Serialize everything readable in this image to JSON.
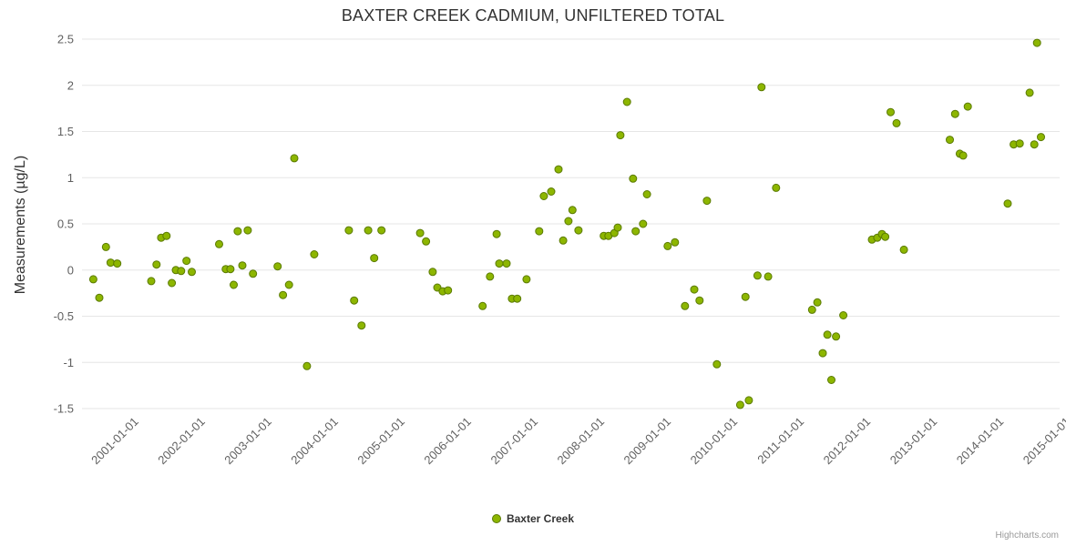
{
  "chart": {
    "title": "BAXTER CREEK CADMIUM, UNFILTERED TOTAL"
  },
  "legend": {
    "label": "Baxter Creek"
  },
  "credits": {
    "label": "Highcharts.com"
  },
  "chart_data": {
    "type": "scatter",
    "title": "BAXTER CREEK CADMIUM, UNFILTERED TOTAL",
    "xlabel": "",
    "ylabel": "Measurements (µg/L)",
    "ylim": [
      -1.5,
      2.5
    ],
    "xlim": [
      2000.21,
      2014.9
    ],
    "grid": true,
    "legend_position": "bottom-center",
    "y_ticks": [
      2.5,
      2,
      1.5,
      1,
      0.5,
      0,
      -0.5,
      -1,
      -1.5
    ],
    "y_tick_labels": [
      "2.5",
      "2",
      "1.5",
      "1",
      "0.5",
      "0",
      "-0.5",
      "-1",
      "-1.5"
    ],
    "x_ticks": [
      2001,
      2002,
      2003,
      2004,
      2005,
      2006,
      2007,
      2008,
      2009,
      2010,
      2011,
      2012,
      2013,
      2014,
      2015
    ],
    "x_tick_labels": [
      "2001-01-01",
      "2002-01-01",
      "2003-01-01",
      "2004-01-01",
      "2005-01-01",
      "2006-01-01",
      "2007-01-01",
      "2008-01-01",
      "2009-01-01",
      "2010-01-01",
      "2011-01-01",
      "2012-01-01",
      "2013-01-01",
      "2014-01-01",
      "2015-01-01"
    ],
    "series": [
      {
        "name": "Baxter Creek",
        "color": "#8db600",
        "marker_stroke": "#5a7a00",
        "points": [
          [
            2000.38,
            -0.1
          ],
          [
            2000.47,
            -0.3
          ],
          [
            2000.57,
            0.25
          ],
          [
            2000.64,
            0.08
          ],
          [
            2000.74,
            0.07
          ],
          [
            2001.25,
            -0.12
          ],
          [
            2001.33,
            0.06
          ],
          [
            2001.4,
            0.35
          ],
          [
            2001.48,
            0.37
          ],
          [
            2001.56,
            -0.14
          ],
          [
            2001.62,
            0.0
          ],
          [
            2001.7,
            -0.01
          ],
          [
            2001.78,
            0.1
          ],
          [
            2001.86,
            -0.02
          ],
          [
            2002.27,
            0.28
          ],
          [
            2002.37,
            0.01
          ],
          [
            2002.44,
            0.01
          ],
          [
            2002.49,
            -0.16
          ],
          [
            2002.55,
            0.42
          ],
          [
            2002.62,
            0.05
          ],
          [
            2002.7,
            0.43
          ],
          [
            2002.78,
            -0.04
          ],
          [
            2003.15,
            0.04
          ],
          [
            2003.23,
            -0.27
          ],
          [
            2003.32,
            -0.16
          ],
          [
            2003.4,
            1.21
          ],
          [
            2003.59,
            -1.04
          ],
          [
            2003.7,
            0.17
          ],
          [
            2004.22,
            0.43
          ],
          [
            2004.3,
            -0.33
          ],
          [
            2004.41,
            -0.6
          ],
          [
            2004.51,
            0.43
          ],
          [
            2004.6,
            0.13
          ],
          [
            2004.71,
            0.43
          ],
          [
            2005.29,
            0.4
          ],
          [
            2005.38,
            0.31
          ],
          [
            2005.48,
            -0.02
          ],
          [
            2005.55,
            -0.19
          ],
          [
            2005.63,
            -0.23
          ],
          [
            2005.71,
            -0.22
          ],
          [
            2006.23,
            -0.39
          ],
          [
            2006.34,
            -0.07
          ],
          [
            2006.44,
            0.39
          ],
          [
            2006.48,
            0.07
          ],
          [
            2006.59,
            0.07
          ],
          [
            2006.67,
            -0.31
          ],
          [
            2006.75,
            -0.31
          ],
          [
            2006.89,
            -0.1
          ],
          [
            2007.08,
            0.42
          ],
          [
            2007.15,
            0.8
          ],
          [
            2007.26,
            0.85
          ],
          [
            2007.37,
            1.09
          ],
          [
            2007.44,
            0.32
          ],
          [
            2007.52,
            0.53
          ],
          [
            2007.58,
            0.65
          ],
          [
            2007.67,
            0.43
          ],
          [
            2008.05,
            0.37
          ],
          [
            2008.12,
            0.37
          ],
          [
            2008.21,
            0.4
          ],
          [
            2008.26,
            0.46
          ],
          [
            2008.3,
            1.46
          ],
          [
            2008.4,
            1.82
          ],
          [
            2008.49,
            0.99
          ],
          [
            2008.53,
            0.42
          ],
          [
            2008.64,
            0.5
          ],
          [
            2008.7,
            0.82
          ],
          [
            2009.01,
            0.26
          ],
          [
            2009.12,
            0.3
          ],
          [
            2009.27,
            -0.39
          ],
          [
            2009.41,
            -0.21
          ],
          [
            2009.49,
            -0.33
          ],
          [
            2009.6,
            0.75
          ],
          [
            2009.75,
            -1.02
          ],
          [
            2010.1,
            -1.46
          ],
          [
            2010.18,
            -0.29
          ],
          [
            2010.23,
            -1.41
          ],
          [
            2010.36,
            -0.06
          ],
          [
            2010.42,
            1.98
          ],
          [
            2010.52,
            -0.07
          ],
          [
            2010.64,
            0.89
          ],
          [
            2011.18,
            -0.43
          ],
          [
            2011.26,
            -0.35
          ],
          [
            2011.34,
            -0.9
          ],
          [
            2011.41,
            -0.7
          ],
          [
            2011.47,
            -1.19
          ],
          [
            2011.54,
            -0.72
          ],
          [
            2011.65,
            -0.49
          ],
          [
            2012.08,
            0.33
          ],
          [
            2012.16,
            0.35
          ],
          [
            2012.23,
            0.39
          ],
          [
            2012.28,
            0.36
          ],
          [
            2012.36,
            1.71
          ],
          [
            2012.45,
            1.59
          ],
          [
            2012.56,
            0.22
          ],
          [
            2013.25,
            1.41
          ],
          [
            2013.33,
            1.69
          ],
          [
            2013.4,
            1.26
          ],
          [
            2013.45,
            1.24
          ],
          [
            2013.52,
            1.77
          ],
          [
            2014.12,
            0.72
          ],
          [
            2014.21,
            1.36
          ],
          [
            2014.3,
            1.37
          ],
          [
            2014.45,
            1.92
          ],
          [
            2014.52,
            1.36
          ],
          [
            2014.56,
            2.46
          ],
          [
            2014.62,
            1.44
          ]
        ]
      }
    ],
    "style": {
      "grid_color": "#e6e6e6",
      "tick_label_color": "#606060",
      "tick_label_size": 13
    }
  }
}
